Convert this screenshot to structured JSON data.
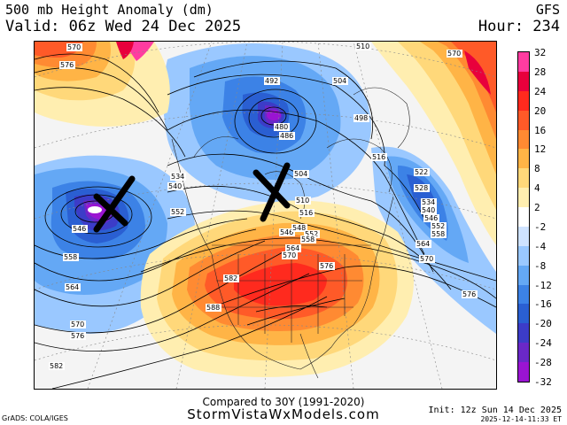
{
  "header": {
    "title": "500 mb Height Anomaly (dm)",
    "valid": "Valid: 06z Wed 24 Dec 2025",
    "model": "GFS",
    "hour": "Hour: 234"
  },
  "colorbar": {
    "ticks": [
      "32",
      "28",
      "24",
      "20",
      "16",
      "12",
      "8",
      "4",
      "2",
      "-2",
      "-4",
      "-8",
      "-12",
      "-16",
      "-20",
      "-24",
      "-28",
      "-32"
    ],
    "colors": [
      "#ff3ca0",
      "#e8003c",
      "#ff2a1e",
      "#ff5a28",
      "#ff8a32",
      "#ffb446",
      "#ffd87a",
      "#ffeeb0",
      "#ffffff",
      "#cfe3ff",
      "#9ac8ff",
      "#64a8f5",
      "#3c82e6",
      "#2a5fd2",
      "#3c3cc8",
      "#6a28c8",
      "#9a14d2"
    ]
  },
  "contour_labels": [
    "570",
    "576",
    "492",
    "504",
    "510",
    "570",
    "480",
    "486",
    "498",
    "516",
    "522",
    "528",
    "534",
    "540",
    "552",
    "534",
    "540",
    "546",
    "552",
    "558",
    "564",
    "570",
    "576",
    "546",
    "558",
    "564",
    "570",
    "576",
    "504",
    "510",
    "516",
    "546",
    "548",
    "552",
    "558",
    "564",
    "570",
    "576",
    "582",
    "588",
    "582"
  ],
  "annotations": {
    "mark_1": "X",
    "mark_2": "X"
  },
  "footer": {
    "compared": "Compared to 30Y (1991-2020)",
    "site": "StormVistaWxModels.com",
    "credit": "GrADS: COLA/IGES",
    "init": "Init: 12z Sun 14 Dec 2025",
    "stamp": "2025-12-14-11:33 ET"
  }
}
